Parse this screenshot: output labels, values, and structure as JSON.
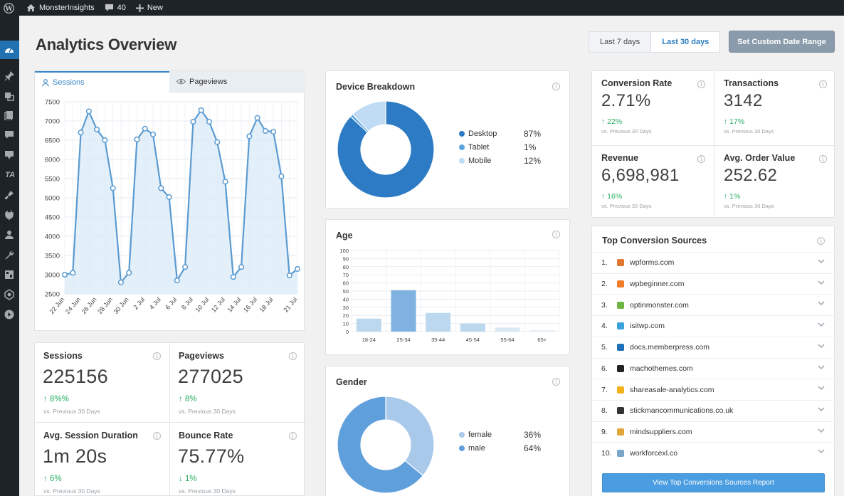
{
  "adminbar": {
    "site_name": "MonsterInsights",
    "comments_count": "40",
    "new_label": "New"
  },
  "page": {
    "title": "Analytics Overview"
  },
  "date_range": {
    "last7": "Last 7 days",
    "last30": "Last 30 days",
    "custom": "Set Custom Date Range"
  },
  "tabs": {
    "sessions": "Sessions",
    "pageviews": "Pageviews"
  },
  "chart_data": [
    {
      "type": "line",
      "title": "",
      "xlabel": "",
      "ylabel": "",
      "ylim": [
        2500,
        7500
      ],
      "yticks": [
        2500,
        3000,
        3500,
        4000,
        4500,
        5000,
        5500,
        6000,
        6500,
        7000,
        7500
      ],
      "x_tick_labels": [
        "22 Jun",
        "24 Jun",
        "26 Jun",
        "28 Jun",
        "30 Jun",
        "2 Jul",
        "4 Jul",
        "6 Jul",
        "8 Jul",
        "10 Jul",
        "12 Jul",
        "14 Jul",
        "16 Jul",
        "18 Jul",
        "21 Jul"
      ],
      "grid": true,
      "series": [
        {
          "values": [
            3000,
            3050,
            6700,
            7250,
            6780,
            6500,
            5250,
            2800,
            3050,
            6520,
            6800,
            6650,
            5250,
            5020,
            2850,
            3200,
            6980,
            7280,
            6980,
            6450,
            5420,
            2940,
            3200,
            6600,
            7080,
            6740,
            6720,
            5560,
            2980,
            3150
          ]
        }
      ]
    },
    {
      "type": "pie",
      "title": "Device Breakdown",
      "categories": [
        "Desktop",
        "Tablet",
        "Mobile"
      ],
      "values": [
        87,
        1,
        12
      ],
      "colors": [
        "#2d7bc4",
        "#5fa6de",
        "#bfdcf4"
      ]
    },
    {
      "type": "bar",
      "title": "Age",
      "categories": [
        "18-24",
        "25-34",
        "35-44",
        "45-54",
        "55-64",
        "65+"
      ],
      "values": [
        16,
        51,
        23,
        10,
        5,
        2
      ],
      "ylim": [
        0,
        100
      ],
      "yticks": [
        0,
        10,
        20,
        30,
        40,
        50,
        60,
        70,
        80,
        90,
        100
      ],
      "colors": [
        "#bcd8ef",
        "#7fb2e0",
        "#bcd8ef",
        "#bcd8ef",
        "#d9e8f5",
        "#e6eff7"
      ]
    },
    {
      "type": "pie",
      "title": "Gender",
      "categories": [
        "female",
        "male"
      ],
      "values": [
        36,
        64
      ],
      "colors": [
        "#a9c9ea",
        "#5f9fdb"
      ]
    }
  ],
  "device": {
    "title": "Device Breakdown",
    "items": [
      {
        "label": "Desktop",
        "pct": "87%",
        "color": "#2d7bc4"
      },
      {
        "label": "Tablet",
        "pct": "1%",
        "color": "#5fa6de"
      },
      {
        "label": "Mobile",
        "pct": "12%",
        "color": "#bfdcf4"
      }
    ]
  },
  "age": {
    "title": "Age"
  },
  "gender": {
    "title": "Gender",
    "items": [
      {
        "label": "female",
        "pct": "36%",
        "color": "#a9c9ea"
      },
      {
        "label": "male",
        "pct": "64%",
        "color": "#5f9fdb"
      }
    ]
  },
  "stats": [
    {
      "label": "Sessions",
      "value": "225156",
      "change": "8%%",
      "dir": "up",
      "sub": "vs. Previous 30 Days"
    },
    {
      "label": "Pageviews",
      "value": "277025",
      "change": "8%",
      "dir": "up",
      "sub": "vs. Previous 30 Days"
    },
    {
      "label": "Avg. Session Duration",
      "value": "1m 20s",
      "change": "6%",
      "dir": "up",
      "sub": "vs. Previous 30 Days"
    },
    {
      "label": "Bounce Rate",
      "value": "75.77%",
      "change": "1%",
      "dir": "down",
      "sub": "vs. Previous 30 Days"
    }
  ],
  "ecommerce": [
    {
      "label": "Conversion Rate",
      "value": "2.71%",
      "change": "22%",
      "sub": "vs. Previous 30 Days"
    },
    {
      "label": "Transactions",
      "value": "3142",
      "change": "17%",
      "sub": "vs. Previous 30 Days"
    },
    {
      "label": "Revenue",
      "value": "6,698,981",
      "change": "16%",
      "sub": "vs. Previous 30 Days"
    },
    {
      "label": "Avg. Order Value",
      "value": "252.62",
      "change": "1%",
      "sub": "vs. Previous 30 Days"
    }
  ],
  "sources": {
    "title": "Top Conversion Sources",
    "items": [
      {
        "num": "1.",
        "name": "wpforms.com",
        "color": "#e27730"
      },
      {
        "num": "2.",
        "name": "wpbeginner.com",
        "color": "#f07b2a"
      },
      {
        "num": "3.",
        "name": "optinmonster.com",
        "color": "#6fb544"
      },
      {
        "num": "4.",
        "name": "isitwp.com",
        "color": "#3aa3dc"
      },
      {
        "num": "5.",
        "name": "docs.memberpress.com",
        "color": "#1f6fb7"
      },
      {
        "num": "6.",
        "name": "machothemes.com",
        "color": "#222222"
      },
      {
        "num": "7.",
        "name": "shareasale-analytics.com",
        "color": "#f2b21c"
      },
      {
        "num": "8.",
        "name": "stickmancommunications.co.uk",
        "color": "#333333"
      },
      {
        "num": "9.",
        "name": "mindsuppliers.com",
        "color": "#e0a63a"
      },
      {
        "num": "10.",
        "name": "workforcexl.co",
        "color": "#7aa7c9"
      }
    ],
    "button": "View Top Conversions Sources Report"
  }
}
